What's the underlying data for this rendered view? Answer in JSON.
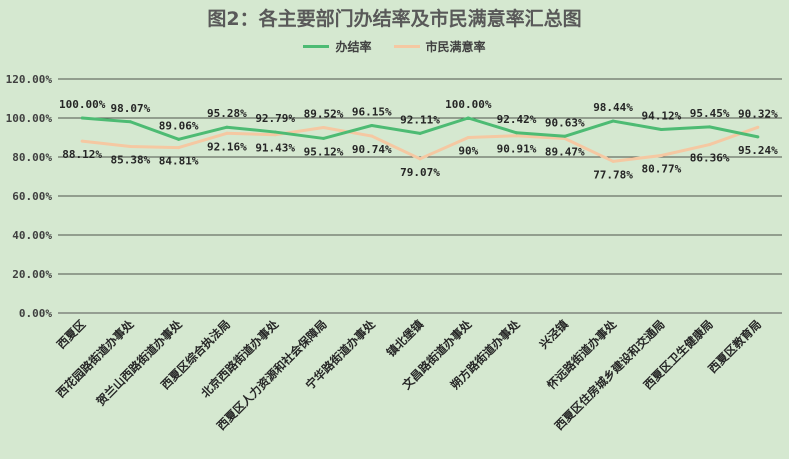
{
  "chart_data": {
    "type": "line",
    "title": "图2：各主要部门办结率及市民满意率汇总图",
    "categories": [
      "西夏区",
      "西花园路街道办事处",
      "贺兰山西路街道办事处",
      "西夏区综合执法局",
      "北京西路街道办事处",
      "西夏区人力资源和社会保障局",
      "宁华路街道办事处",
      "镇北堡镇",
      "文昌路街道办事处",
      "朔方路街道办事处",
      "兴泾镇",
      "怀远路街道办事处",
      "西夏区住房城乡建设和交通局",
      "西夏区卫生健康局",
      "西夏区教育局"
    ],
    "series": [
      {
        "name": "办结率",
        "color": "#4dbb73",
        "values": [
          100.0,
          98.07,
          89.06,
          95.28,
          92.79,
          89.52,
          96.15,
          92.11,
          100.0,
          92.42,
          90.63,
          98.44,
          94.12,
          95.45,
          90.32
        ],
        "labels": [
          "100.00%",
          "98.07%",
          "89.06%",
          "95.28%",
          "92.79%",
          "89.52%",
          "96.15%",
          "92.11%",
          "100.00%",
          "92.42%",
          "90.63%",
          "98.44%",
          "94.12%",
          "95.45%",
          "90.32%"
        ]
      },
      {
        "name": "市民满意率",
        "color": "#f5c8a2",
        "values": [
          88.12,
          85.38,
          84.81,
          92.16,
          91.43,
          95.12,
          90.74,
          79.07,
          90.0,
          90.91,
          89.47,
          77.78,
          80.77,
          86.36,
          95.24
        ],
        "labels": [
          "88.12%",
          "85.38%",
          "84.81%",
          "92.16%",
          "91.43%",
          "95.12%",
          "90.74%",
          "79.07%",
          "90%",
          "90.91%",
          "89.47%",
          "77.78%",
          "80.77%",
          "86.36%",
          "95.24%"
        ]
      }
    ],
    "ylim": [
      0,
      120
    ],
    "y_ticks": [
      "0.00%",
      "20.00%",
      "40.00%",
      "60.00%",
      "80.00%",
      "100.00%",
      "120.00%"
    ],
    "grid": true,
    "legend_position": "top"
  }
}
